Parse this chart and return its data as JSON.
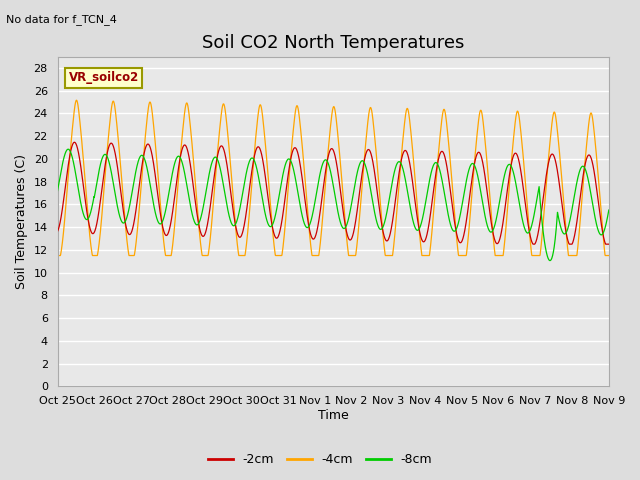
{
  "title": "Soil CO2 North Temperatures",
  "subtitle": "No data for f_TCN_4",
  "ylabel": "Soil Temperatures (C)",
  "xlabel": "Time",
  "legend_label": "VR_soilco2",
  "series_labels": [
    "-2cm",
    "-4cm",
    "-8cm"
  ],
  "series_colors": [
    "#cc0000",
    "#ffa500",
    "#00cc00"
  ],
  "ylim": [
    0,
    29
  ],
  "yticks": [
    0,
    2,
    4,
    6,
    8,
    10,
    12,
    14,
    16,
    18,
    20,
    22,
    24,
    26,
    28
  ],
  "xtick_labels": [
    "Oct 25",
    "Oct 26",
    "Oct 27",
    "Oct 28",
    "Oct 29",
    "Oct 30",
    "Oct 31",
    "Nov 1",
    "Nov 2",
    "Nov 3",
    "Nov 4",
    "Nov 5",
    "Nov 6",
    "Nov 7",
    "Nov 8",
    "Nov 9"
  ],
  "background_color": "#dddddd",
  "plot_bg_color": "#e8e8e8",
  "grid_color": "#ffffff",
  "title_fontsize": 13,
  "axis_label_fontsize": 9,
  "tick_fontsize": 8,
  "legend_fontsize": 9
}
